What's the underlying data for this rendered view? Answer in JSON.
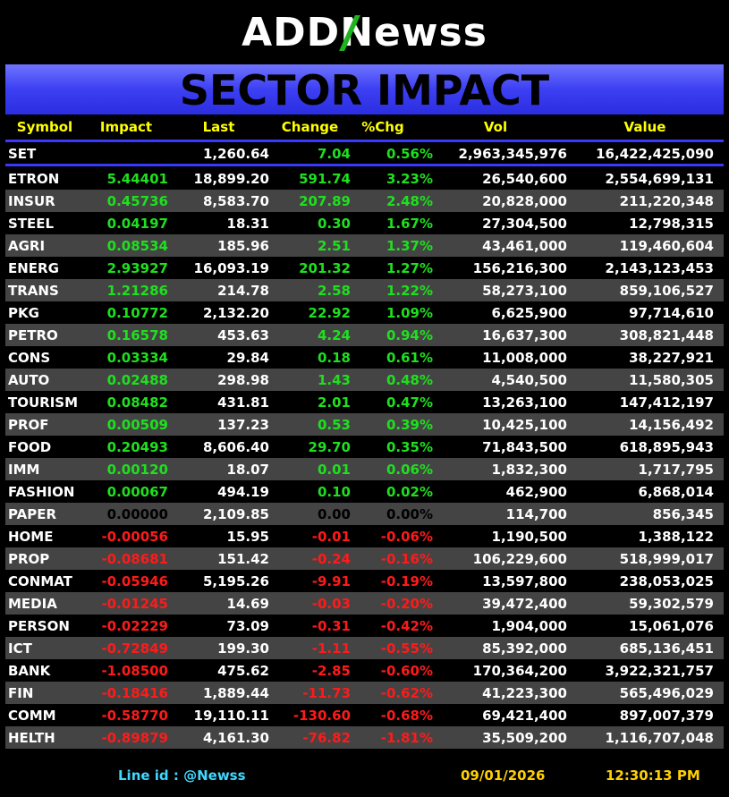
{
  "brand": {
    "pre": "ADD",
    "n": "N",
    "post": "ewss"
  },
  "banner_title": "SECTOR IMPACT",
  "headers": {
    "symbol": "Symbol",
    "impact": "Impact",
    "last": "Last",
    "change": "Change",
    "pct": "%Chg",
    "vol": "Vol",
    "value": "Value"
  },
  "set_row": {
    "symbol": "SET",
    "impact": "",
    "last": "1,260.64",
    "change": "7.04",
    "pct": "0.56%",
    "vol": "2,963,345,976",
    "value": "16,422,425,090"
  },
  "rows": [
    {
      "symbol": "ETRON",
      "impact": "5.44401",
      "last": "18,899.20",
      "change": "591.74",
      "pct": "3.23%",
      "vol": "26,540,600",
      "value": "2,554,699,131",
      "dir": "pos"
    },
    {
      "symbol": "INSUR",
      "impact": "0.45736",
      "last": "8,583.70",
      "change": "207.89",
      "pct": "2.48%",
      "vol": "20,828,000",
      "value": "211,220,348",
      "dir": "pos"
    },
    {
      "symbol": "STEEL",
      "impact": "0.04197",
      "last": "18.31",
      "change": "0.30",
      "pct": "1.67%",
      "vol": "27,304,500",
      "value": "12,798,315",
      "dir": "pos"
    },
    {
      "symbol": "AGRI",
      "impact": "0.08534",
      "last": "185.96",
      "change": "2.51",
      "pct": "1.37%",
      "vol": "43,461,000",
      "value": "119,460,604",
      "dir": "pos"
    },
    {
      "symbol": "ENERG",
      "impact": "2.93927",
      "last": "16,093.19",
      "change": "201.32",
      "pct": "1.27%",
      "vol": "156,216,300",
      "value": "2,143,123,453",
      "dir": "pos"
    },
    {
      "symbol": "TRANS",
      "impact": "1.21286",
      "last": "214.78",
      "change": "2.58",
      "pct": "1.22%",
      "vol": "58,273,100",
      "value": "859,106,527",
      "dir": "pos"
    },
    {
      "symbol": "PKG",
      "impact": "0.10772",
      "last": "2,132.20",
      "change": "22.92",
      "pct": "1.09%",
      "vol": "6,625,900",
      "value": "97,714,610",
      "dir": "pos"
    },
    {
      "symbol": "PETRO",
      "impact": "0.16578",
      "last": "453.63",
      "change": "4.24",
      "pct": "0.94%",
      "vol": "16,637,300",
      "value": "308,821,448",
      "dir": "pos"
    },
    {
      "symbol": "CONS",
      "impact": "0.03334",
      "last": "29.84",
      "change": "0.18",
      "pct": "0.61%",
      "vol": "11,008,000",
      "value": "38,227,921",
      "dir": "pos"
    },
    {
      "symbol": "AUTO",
      "impact": "0.02488",
      "last": "298.98",
      "change": "1.43",
      "pct": "0.48%",
      "vol": "4,540,500",
      "value": "11,580,305",
      "dir": "pos"
    },
    {
      "symbol": "TOURISM",
      "impact": "0.08482",
      "last": "431.81",
      "change": "2.01",
      "pct": "0.47%",
      "vol": "13,263,100",
      "value": "147,412,197",
      "dir": "pos"
    },
    {
      "symbol": "PROF",
      "impact": "0.00509",
      "last": "137.23",
      "change": "0.53",
      "pct": "0.39%",
      "vol": "10,425,100",
      "value": "14,156,492",
      "dir": "pos"
    },
    {
      "symbol": "FOOD",
      "impact": "0.20493",
      "last": "8,606.40",
      "change": "29.70",
      "pct": "0.35%",
      "vol": "71,843,500",
      "value": "618,895,943",
      "dir": "pos"
    },
    {
      "symbol": "IMM",
      "impact": "0.00120",
      "last": "18.07",
      "change": "0.01",
      "pct": "0.06%",
      "vol": "1,832,300",
      "value": "1,717,795",
      "dir": "pos"
    },
    {
      "symbol": "FASHION",
      "impact": "0.00067",
      "last": "494.19",
      "change": "0.10",
      "pct": "0.02%",
      "vol": "462,900",
      "value": "6,868,014",
      "dir": "pos"
    },
    {
      "symbol": "PAPER",
      "impact": "0.00000",
      "last": "2,109.85",
      "change": "0.00",
      "pct": "0.00%",
      "vol": "114,700",
      "value": "856,345",
      "dir": "zero"
    },
    {
      "symbol": "HOME",
      "impact": "-0.00056",
      "last": "15.95",
      "change": "-0.01",
      "pct": "-0.06%",
      "vol": "1,190,500",
      "value": "1,388,122",
      "dir": "neg"
    },
    {
      "symbol": "PROP",
      "impact": "-0.08681",
      "last": "151.42",
      "change": "-0.24",
      "pct": "-0.16%",
      "vol": "106,229,600",
      "value": "518,999,017",
      "dir": "neg"
    },
    {
      "symbol": "CONMAT",
      "impact": "-0.05946",
      "last": "5,195.26",
      "change": "-9.91",
      "pct": "-0.19%",
      "vol": "13,597,800",
      "value": "238,053,025",
      "dir": "neg"
    },
    {
      "symbol": "MEDIA",
      "impact": "-0.01245",
      "last": "14.69",
      "change": "-0.03",
      "pct": "-0.20%",
      "vol": "39,472,400",
      "value": "59,302,579",
      "dir": "neg"
    },
    {
      "symbol": "PERSON",
      "impact": "-0.02229",
      "last": "73.09",
      "change": "-0.31",
      "pct": "-0.42%",
      "vol": "1,904,000",
      "value": "15,061,076",
      "dir": "neg"
    },
    {
      "symbol": "ICT",
      "impact": "-0.72849",
      "last": "199.30",
      "change": "-1.11",
      "pct": "-0.55%",
      "vol": "85,392,000",
      "value": "685,136,451",
      "dir": "neg"
    },
    {
      "symbol": "BANK",
      "impact": "-1.08500",
      "last": "475.62",
      "change": "-2.85",
      "pct": "-0.60%",
      "vol": "170,364,200",
      "value": "3,922,321,757",
      "dir": "neg"
    },
    {
      "symbol": "FIN",
      "impact": "-0.18416",
      "last": "1,889.44",
      "change": "-11.73",
      "pct": "-0.62%",
      "vol": "41,223,300",
      "value": "565,496,029",
      "dir": "neg"
    },
    {
      "symbol": "COMM",
      "impact": "-0.58770",
      "last": "19,110.11",
      "change": "-130.60",
      "pct": "-0.68%",
      "vol": "69,421,400",
      "value": "897,007,379",
      "dir": "neg"
    },
    {
      "symbol": "HELTH",
      "impact": "-0.89879",
      "last": "4,161.30",
      "change": "-76.82",
      "pct": "-1.81%",
      "vol": "35,509,200",
      "value": "1,116,707,048",
      "dir": "neg"
    }
  ],
  "footer": {
    "line_id": "Line id  : @Newss",
    "date": "09/01/2026",
    "time": "12:30:13 PM"
  },
  "colors": {
    "positive": "#1ee01e",
    "negative": "#ff1a1a",
    "header": "#ffff00",
    "banner": "#3c3ff2"
  }
}
